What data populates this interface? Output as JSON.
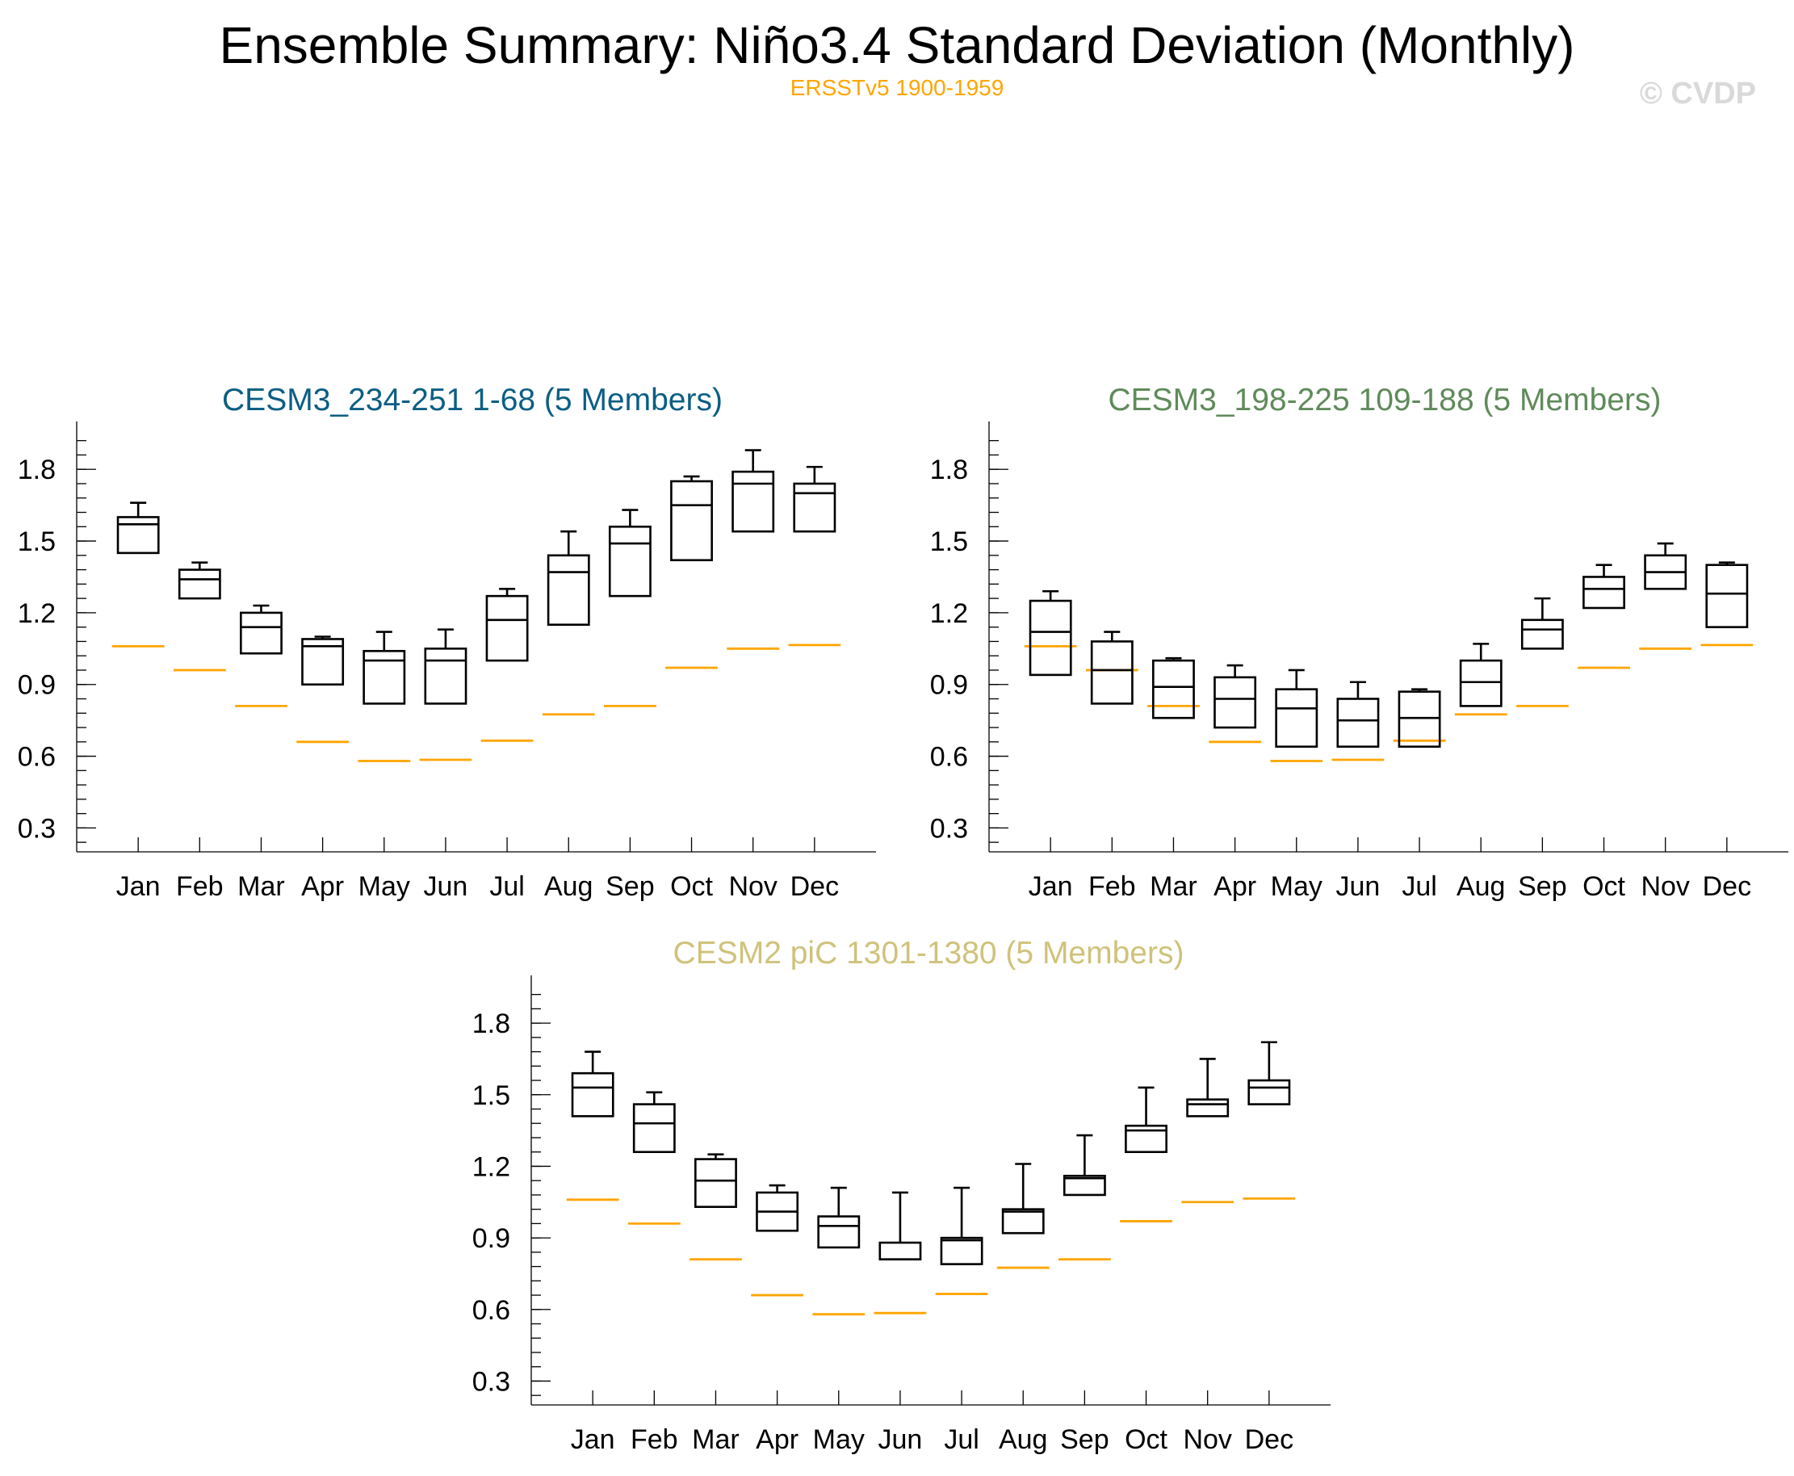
{
  "title": "Ensemble Summary: Niño3.4 Standard Deviation (Monthly)",
  "subtitle": "ERSSTv5 1900-1959",
  "watermark": "© CVDP",
  "colors": {
    "reference": "#ffa500",
    "panel1_title": "#0b5e84",
    "panel2_title": "#5f8a5a",
    "panel3_title": "#cfc27a"
  },
  "chart_data": [
    {
      "type": "boxplot",
      "title": "CESM3_234-251 1-68 (5 Members)",
      "title_color": "#0b5e84",
      "categories": [
        "Jan",
        "Feb",
        "Mar",
        "Apr",
        "May",
        "Jun",
        "Jul",
        "Aug",
        "Sep",
        "Oct",
        "Nov",
        "Dec"
      ],
      "yticks": [
        "0.3",
        "0.6",
        "0.9",
        "1.2",
        "1.5",
        "1.8"
      ],
      "ylim": [
        0.2,
        2.0
      ],
      "series": [
        {
          "name": "ensemble",
          "boxes": [
            {
              "min": 1.45,
              "q1": 1.45,
              "median": 1.57,
              "q3": 1.6,
              "max": 1.66
            },
            {
              "min": 1.26,
              "q1": 1.26,
              "median": 1.34,
              "q3": 1.38,
              "max": 1.41
            },
            {
              "min": 1.03,
              "q1": 1.03,
              "median": 1.14,
              "q3": 1.2,
              "max": 1.23
            },
            {
              "min": 0.9,
              "q1": 0.9,
              "median": 1.06,
              "q3": 1.09,
              "max": 1.1
            },
            {
              "min": 0.82,
              "q1": 0.82,
              "median": 1.0,
              "q3": 1.04,
              "max": 1.12
            },
            {
              "min": 0.82,
              "q1": 0.82,
              "median": 1.0,
              "q3": 1.05,
              "max": 1.13
            },
            {
              "min": 1.0,
              "q1": 1.0,
              "median": 1.17,
              "q3": 1.27,
              "max": 1.3
            },
            {
              "min": 1.15,
              "q1": 1.15,
              "median": 1.37,
              "q3": 1.44,
              "max": 1.54
            },
            {
              "min": 1.27,
              "q1": 1.27,
              "median": 1.49,
              "q3": 1.56,
              "max": 1.63
            },
            {
              "min": 1.42,
              "q1": 1.42,
              "median": 1.65,
              "q3": 1.75,
              "max": 1.77
            },
            {
              "min": 1.54,
              "q1": 1.54,
              "median": 1.74,
              "q3": 1.79,
              "max": 1.88
            },
            {
              "min": 1.54,
              "q1": 1.54,
              "median": 1.7,
              "q3": 1.74,
              "max": 1.81
            }
          ]
        },
        {
          "name": "ERSSTv5 1900-1959",
          "values": [
            1.06,
            0.96,
            0.81,
            0.66,
            0.58,
            0.585,
            0.665,
            0.775,
            0.81,
            0.97,
            1.05,
            1.065
          ]
        }
      ]
    },
    {
      "type": "boxplot",
      "title": "CESM3_198-225 109-188 (5 Members)",
      "title_color": "#5f8a5a",
      "categories": [
        "Jan",
        "Feb",
        "Mar",
        "Apr",
        "May",
        "Jun",
        "Jul",
        "Aug",
        "Sep",
        "Oct",
        "Nov",
        "Dec"
      ],
      "yticks": [
        "0.3",
        "0.6",
        "0.9",
        "1.2",
        "1.5",
        "1.8"
      ],
      "ylim": [
        0.2,
        2.0
      ],
      "series": [
        {
          "name": "ensemble",
          "boxes": [
            {
              "min": 0.94,
              "q1": 0.94,
              "median": 1.12,
              "q3": 1.25,
              "max": 1.29
            },
            {
              "min": 0.82,
              "q1": 0.82,
              "median": 0.96,
              "q3": 1.08,
              "max": 1.12
            },
            {
              "min": 0.76,
              "q1": 0.76,
              "median": 0.89,
              "q3": 1.0,
              "max": 1.01
            },
            {
              "min": 0.72,
              "q1": 0.72,
              "median": 0.84,
              "q3": 0.93,
              "max": 0.98
            },
            {
              "min": 0.64,
              "q1": 0.64,
              "median": 0.8,
              "q3": 0.88,
              "max": 0.96
            },
            {
              "min": 0.64,
              "q1": 0.64,
              "median": 0.75,
              "q3": 0.84,
              "max": 0.91
            },
            {
              "min": 0.64,
              "q1": 0.64,
              "median": 0.76,
              "q3": 0.87,
              "max": 0.88
            },
            {
              "min": 0.81,
              "q1": 0.81,
              "median": 0.91,
              "q3": 1.0,
              "max": 1.07
            },
            {
              "min": 1.05,
              "q1": 1.05,
              "median": 1.13,
              "q3": 1.17,
              "max": 1.26
            },
            {
              "min": 1.22,
              "q1": 1.22,
              "median": 1.3,
              "q3": 1.35,
              "max": 1.4
            },
            {
              "min": 1.3,
              "q1": 1.3,
              "median": 1.37,
              "q3": 1.44,
              "max": 1.49
            },
            {
              "min": 1.14,
              "q1": 1.14,
              "median": 1.28,
              "q3": 1.4,
              "max": 1.41
            }
          ]
        },
        {
          "name": "ERSSTv5 1900-1959",
          "values": [
            1.06,
            0.96,
            0.81,
            0.66,
            0.58,
            0.585,
            0.665,
            0.775,
            0.81,
            0.97,
            1.05,
            1.065
          ]
        }
      ]
    },
    {
      "type": "boxplot",
      "title": "CESM2 piC 1301-1380 (5 Members)",
      "title_color": "#cfc27a",
      "categories": [
        "Jan",
        "Feb",
        "Mar",
        "Apr",
        "May",
        "Jun",
        "Jul",
        "Aug",
        "Sep",
        "Oct",
        "Nov",
        "Dec"
      ],
      "yticks": [
        "0.3",
        "0.6",
        "0.9",
        "1.2",
        "1.5",
        "1.8"
      ],
      "ylim": [
        0.2,
        2.0
      ],
      "series": [
        {
          "name": "ensemble",
          "boxes": [
            {
              "min": 1.41,
              "q1": 1.41,
              "median": 1.53,
              "q3": 1.59,
              "max": 1.68
            },
            {
              "min": 1.26,
              "q1": 1.26,
              "median": 1.38,
              "q3": 1.46,
              "max": 1.51
            },
            {
              "min": 1.03,
              "q1": 1.03,
              "median": 1.14,
              "q3": 1.23,
              "max": 1.25
            },
            {
              "min": 0.93,
              "q1": 0.93,
              "median": 1.01,
              "q3": 1.09,
              "max": 1.12
            },
            {
              "min": 0.86,
              "q1": 0.86,
              "median": 0.95,
              "q3": 0.99,
              "max": 1.11
            },
            {
              "min": 0.81,
              "q1": 0.81,
              "median": 0.81,
              "q3": 0.88,
              "max": 1.09
            },
            {
              "min": 0.79,
              "q1": 0.79,
              "median": 0.89,
              "q3": 0.9,
              "max": 1.11
            },
            {
              "min": 0.92,
              "q1": 0.92,
              "median": 1.01,
              "q3": 1.02,
              "max": 1.21
            },
            {
              "min": 1.08,
              "q1": 1.08,
              "median": 1.15,
              "q3": 1.16,
              "max": 1.33
            },
            {
              "min": 1.26,
              "q1": 1.26,
              "median": 1.35,
              "q3": 1.37,
              "max": 1.53
            },
            {
              "min": 1.41,
              "q1": 1.41,
              "median": 1.46,
              "q3": 1.48,
              "max": 1.65
            },
            {
              "min": 1.46,
              "q1": 1.46,
              "median": 1.53,
              "q3": 1.56,
              "max": 1.72
            }
          ]
        },
        {
          "name": "ERSSTv5 1900-1959",
          "values": [
            1.06,
            0.96,
            0.81,
            0.66,
            0.58,
            0.585,
            0.665,
            0.775,
            0.81,
            0.97,
            1.05,
            1.065
          ]
        }
      ]
    }
  ]
}
